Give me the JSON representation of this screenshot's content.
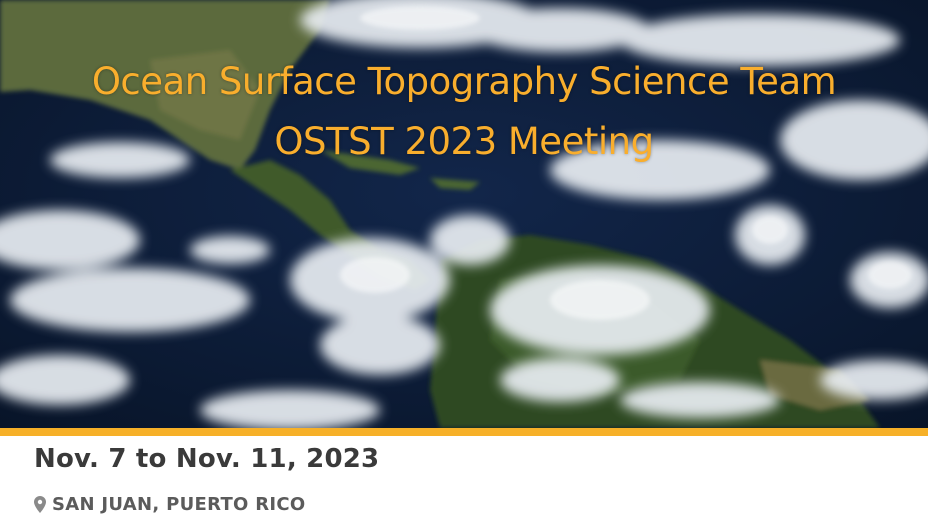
{
  "event": {
    "title_line_1": "Ocean Surface Topography Science Team",
    "title_line_2": "OSTST 2023 Meeting",
    "date_range": "Nov. 7 to Nov. 11, 2023",
    "location": "SAN JUAN, PUERTO RICO"
  },
  "banner_image": {
    "subject": "satellite-image-caribbean-atlantic-clouds"
  },
  "icons": {
    "location": "map-pin-icon"
  },
  "colors": {
    "title": "#f9ae2d",
    "accent_bar": "#f6b028",
    "date_text": "#3a3a3a",
    "location_text": "#5b5b5b",
    "pin_icon": "#8a8a8a",
    "ocean": "#0c1a36",
    "land": "#3e5a2c",
    "cloud": "#e9eef3"
  }
}
